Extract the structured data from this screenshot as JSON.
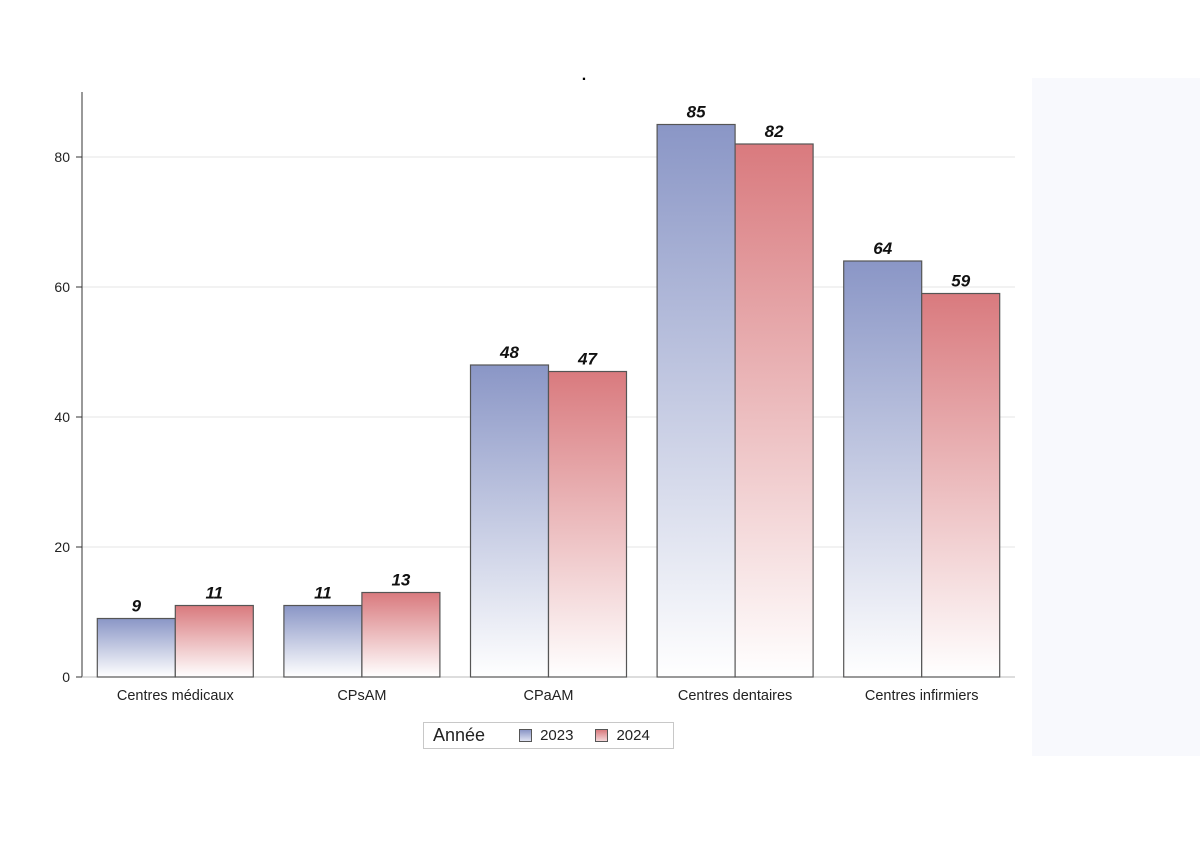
{
  "chart_data": {
    "type": "bar",
    "title": ".",
    "xlabel": "",
    "ylabel": "",
    "categories": [
      "Centres médicaux",
      "CPsAM",
      "CPaAM",
      "Centres dentaires",
      "Centres infirmiers"
    ],
    "series": [
      {
        "name": "2023",
        "values": [
          9,
          11,
          48,
          85,
          64
        ],
        "color": "#8a96c6"
      },
      {
        "name": "2024",
        "values": [
          11,
          13,
          47,
          82,
          59
        ],
        "color": "#d97a7e"
      }
    ],
    "ylim": [
      0,
      90
    ],
    "yticks": [
      0,
      20,
      40,
      60,
      80
    ],
    "grid": true,
    "legend_title": "Année",
    "legend_position": "bottom"
  }
}
